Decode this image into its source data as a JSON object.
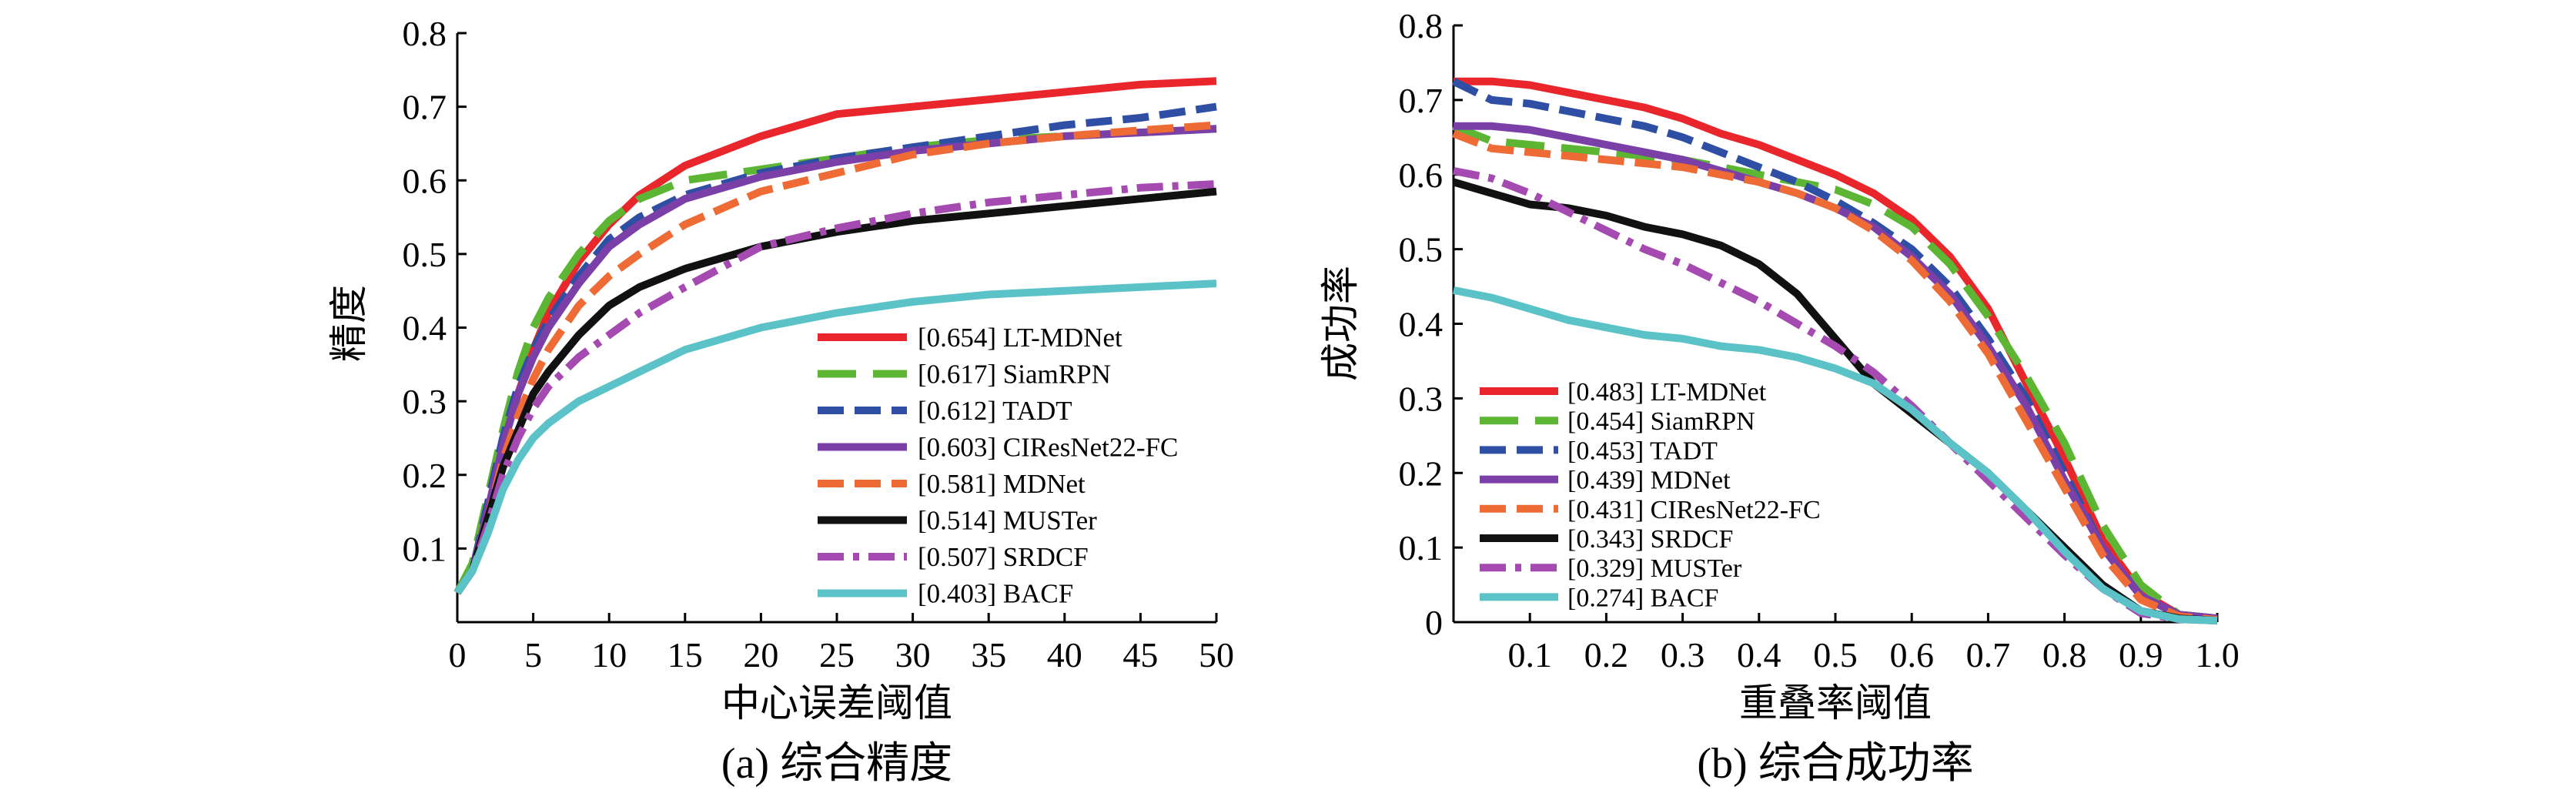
{
  "chart_data": [
    {
      "id": "a",
      "type": "line",
      "caption": "(a) 综合精度",
      "xlabel": "中心误差阈值",
      "ylabel": "精度",
      "xlim": [
        0,
        50
      ],
      "ylim": [
        0,
        0.8
      ],
      "xticks": [
        "0",
        "5",
        "10",
        "15",
        "20",
        "25",
        "30",
        "35",
        "40",
        "45",
        "50"
      ],
      "yticks": [
        "0.1",
        "0.2",
        "0.3",
        "0.4",
        "0.5",
        "0.6",
        "0.7",
        "0.8"
      ],
      "legend_position": "bottom-right",
      "series": [
        {
          "name": "[0.654] LT-MDNet",
          "color": "#e8262b",
          "dash": "solid",
          "x": [
            0,
            1,
            2,
            3,
            4,
            5,
            6,
            8,
            10,
            12,
            15,
            20,
            25,
            30,
            35,
            40,
            45,
            50
          ],
          "y": [
            0.04,
            0.07,
            0.15,
            0.24,
            0.31,
            0.37,
            0.42,
            0.49,
            0.54,
            0.58,
            0.62,
            0.66,
            0.69,
            0.7,
            0.71,
            0.72,
            0.73,
            0.735
          ]
        },
        {
          "name": "[0.617] SiamRPN",
          "color": "#5cb634",
          "dash": "longdash",
          "x": [
            0,
            1,
            2,
            3,
            4,
            5,
            6,
            8,
            10,
            12,
            15,
            20,
            25,
            30,
            35,
            40,
            45,
            50
          ],
          "y": [
            0.04,
            0.08,
            0.17,
            0.26,
            0.34,
            0.4,
            0.44,
            0.5,
            0.545,
            0.575,
            0.6,
            0.615,
            0.63,
            0.645,
            0.655,
            0.66,
            0.665,
            0.67
          ]
        },
        {
          "name": "[0.612] TADT",
          "color": "#2e4fa3",
          "dash": "dashed",
          "x": [
            0,
            1,
            2,
            3,
            4,
            5,
            6,
            8,
            10,
            12,
            15,
            20,
            25,
            30,
            35,
            40,
            45,
            50
          ],
          "y": [
            0.04,
            0.07,
            0.16,
            0.25,
            0.32,
            0.37,
            0.41,
            0.47,
            0.52,
            0.55,
            0.58,
            0.61,
            0.63,
            0.645,
            0.66,
            0.675,
            0.685,
            0.7
          ]
        },
        {
          "name": "[0.603] CIResNet22-FC",
          "color": "#7b3fa8",
          "dash": "solid",
          "x": [
            0,
            1,
            2,
            3,
            4,
            5,
            6,
            8,
            10,
            12,
            15,
            20,
            25,
            30,
            35,
            40,
            45,
            50
          ],
          "y": [
            0.04,
            0.07,
            0.15,
            0.24,
            0.31,
            0.36,
            0.4,
            0.46,
            0.51,
            0.54,
            0.575,
            0.605,
            0.625,
            0.64,
            0.65,
            0.66,
            0.665,
            0.67
          ]
        },
        {
          "name": "[0.581] MDNet",
          "color": "#ee6b35",
          "dash": "dashed",
          "x": [
            0,
            1,
            2,
            3,
            4,
            5,
            6,
            8,
            10,
            12,
            15,
            20,
            25,
            30,
            35,
            40,
            45,
            50
          ],
          "y": [
            0.04,
            0.07,
            0.14,
            0.22,
            0.28,
            0.33,
            0.37,
            0.43,
            0.47,
            0.5,
            0.54,
            0.585,
            0.61,
            0.635,
            0.65,
            0.66,
            0.668,
            0.675
          ]
        },
        {
          "name": "[0.514] MUSTer",
          "color": "#111111",
          "dash": "solid",
          "x": [
            0,
            1,
            2,
            3,
            4,
            5,
            6,
            8,
            10,
            12,
            15,
            20,
            25,
            30,
            35,
            40,
            45,
            50
          ],
          "y": [
            0.04,
            0.07,
            0.14,
            0.21,
            0.26,
            0.31,
            0.34,
            0.39,
            0.43,
            0.455,
            0.48,
            0.51,
            0.53,
            0.545,
            0.555,
            0.565,
            0.575,
            0.585
          ]
        },
        {
          "name": "[0.507] SRDCF",
          "color": "#a44ab0",
          "dash": "dashdot",
          "x": [
            0,
            1,
            2,
            3,
            4,
            5,
            6,
            8,
            10,
            12,
            15,
            20,
            25,
            30,
            35,
            40,
            45,
            50
          ],
          "y": [
            0.04,
            0.07,
            0.13,
            0.2,
            0.25,
            0.29,
            0.32,
            0.36,
            0.39,
            0.42,
            0.455,
            0.51,
            0.535,
            0.555,
            0.57,
            0.58,
            0.59,
            0.595
          ]
        },
        {
          "name": "[0.403] BACF",
          "color": "#5bc3c7",
          "dash": "solid",
          "x": [
            0,
            1,
            2,
            3,
            4,
            5,
            6,
            8,
            10,
            12,
            15,
            20,
            25,
            30,
            35,
            40,
            45,
            50
          ],
          "y": [
            0.04,
            0.07,
            0.12,
            0.18,
            0.22,
            0.25,
            0.27,
            0.3,
            0.32,
            0.34,
            0.37,
            0.4,
            0.42,
            0.435,
            0.445,
            0.45,
            0.455,
            0.46
          ]
        }
      ]
    },
    {
      "id": "b",
      "type": "line",
      "caption": "(b) 综合成功率",
      "xlabel": "重叠率阈值",
      "ylabel": "成功率",
      "xlim": [
        0,
        1.0
      ],
      "ylim": [
        0,
        0.8
      ],
      "xticks": [
        "0.1",
        "0.2",
        "0.3",
        "0.4",
        "0.5",
        "0.6",
        "0.7",
        "0.8",
        "0.9",
        "1.0"
      ],
      "yticks": [
        "0",
        "0.1",
        "0.2",
        "0.3",
        "0.4",
        "0.5",
        "0.6",
        "0.7",
        "0.8"
      ],
      "legend_position": "bottom-left",
      "series": [
        {
          "name": "[0.483] LT-MDNet",
          "color": "#e8262b",
          "dash": "solid",
          "x": [
            0,
            0.05,
            0.1,
            0.15,
            0.2,
            0.25,
            0.3,
            0.35,
            0.4,
            0.45,
            0.5,
            0.55,
            0.6,
            0.65,
            0.7,
            0.75,
            0.8,
            0.85,
            0.9,
            0.95,
            1.0
          ],
          "y": [
            0.725,
            0.725,
            0.72,
            0.71,
            0.7,
            0.69,
            0.675,
            0.655,
            0.64,
            0.62,
            0.6,
            0.575,
            0.54,
            0.49,
            0.42,
            0.32,
            0.22,
            0.11,
            0.04,
            0.01,
            0.005
          ]
        },
        {
          "name": "[0.454] SiamRPN",
          "color": "#5cb634",
          "dash": "longdash",
          "x": [
            0,
            0.05,
            0.1,
            0.15,
            0.2,
            0.25,
            0.3,
            0.35,
            0.4,
            0.45,
            0.5,
            0.55,
            0.6,
            0.65,
            0.7,
            0.75,
            0.8,
            0.85,
            0.9,
            0.95,
            1.0
          ],
          "y": [
            0.665,
            0.645,
            0.64,
            0.635,
            0.63,
            0.625,
            0.62,
            0.61,
            0.6,
            0.59,
            0.58,
            0.56,
            0.53,
            0.48,
            0.41,
            0.33,
            0.24,
            0.13,
            0.05,
            0.01,
            0.005
          ]
        },
        {
          "name": "[0.453] TADT",
          "color": "#2e4fa3",
          "dash": "dashed",
          "x": [
            0,
            0.05,
            0.1,
            0.15,
            0.2,
            0.25,
            0.3,
            0.35,
            0.4,
            0.45,
            0.5,
            0.55,
            0.6,
            0.65,
            0.7,
            0.75,
            0.8,
            0.85,
            0.9,
            0.95,
            1.0
          ],
          "y": [
            0.725,
            0.7,
            0.695,
            0.685,
            0.675,
            0.665,
            0.65,
            0.63,
            0.61,
            0.59,
            0.565,
            0.535,
            0.5,
            0.45,
            0.38,
            0.3,
            0.2,
            0.1,
            0.035,
            0.01,
            0.005
          ]
        },
        {
          "name": "[0.439] MDNet",
          "color": "#7b3fa8",
          "dash": "solid",
          "x": [
            0,
            0.05,
            0.1,
            0.15,
            0.2,
            0.25,
            0.3,
            0.35,
            0.4,
            0.45,
            0.5,
            0.55,
            0.6,
            0.65,
            0.7,
            0.75,
            0.8,
            0.85,
            0.9,
            0.95,
            1.0
          ],
          "y": [
            0.665,
            0.665,
            0.66,
            0.65,
            0.64,
            0.63,
            0.62,
            0.605,
            0.59,
            0.575,
            0.555,
            0.53,
            0.49,
            0.44,
            0.37,
            0.29,
            0.19,
            0.1,
            0.035,
            0.01,
            0.005
          ]
        },
        {
          "name": "[0.431] CIResNet22-FC",
          "color": "#ee6b35",
          "dash": "dashed",
          "x": [
            0,
            0.05,
            0.1,
            0.15,
            0.2,
            0.25,
            0.3,
            0.35,
            0.4,
            0.45,
            0.5,
            0.55,
            0.6,
            0.65,
            0.7,
            0.75,
            0.8,
            0.85,
            0.9,
            0.95,
            1.0
          ],
          "y": [
            0.655,
            0.635,
            0.63,
            0.625,
            0.62,
            0.615,
            0.61,
            0.6,
            0.59,
            0.575,
            0.555,
            0.525,
            0.485,
            0.43,
            0.36,
            0.27,
            0.18,
            0.09,
            0.03,
            0.008,
            0.003
          ]
        },
        {
          "name": "[0.343] SRDCF",
          "color": "#111111",
          "dash": "solid",
          "x": [
            0,
            0.05,
            0.1,
            0.15,
            0.2,
            0.25,
            0.3,
            0.35,
            0.4,
            0.45,
            0.5,
            0.55,
            0.6,
            0.65,
            0.7,
            0.75,
            0.8,
            0.85,
            0.9,
            0.95,
            1.0
          ],
          "y": [
            0.59,
            0.575,
            0.56,
            0.555,
            0.545,
            0.53,
            0.52,
            0.505,
            0.48,
            0.44,
            0.38,
            0.32,
            0.28,
            0.24,
            0.2,
            0.15,
            0.1,
            0.05,
            0.015,
            0.005,
            0.002
          ]
        },
        {
          "name": "[0.329] MUSTer",
          "color": "#a44ab0",
          "dash": "dashdot",
          "x": [
            0,
            0.05,
            0.1,
            0.15,
            0.2,
            0.25,
            0.3,
            0.35,
            0.4,
            0.45,
            0.5,
            0.55,
            0.6,
            0.65,
            0.7,
            0.75,
            0.8,
            0.85,
            0.9,
            0.95,
            1.0
          ],
          "y": [
            0.605,
            0.595,
            0.575,
            0.55,
            0.525,
            0.5,
            0.48,
            0.455,
            0.43,
            0.4,
            0.37,
            0.335,
            0.29,
            0.24,
            0.19,
            0.14,
            0.09,
            0.045,
            0.012,
            0.004,
            0.002
          ]
        },
        {
          "name": "[0.274] BACF",
          "color": "#5bc3c7",
          "dash": "solid",
          "x": [
            0,
            0.05,
            0.1,
            0.15,
            0.2,
            0.25,
            0.3,
            0.35,
            0.4,
            0.45,
            0.5,
            0.55,
            0.6,
            0.65,
            0.7,
            0.75,
            0.8,
            0.85,
            0.9,
            0.95,
            1.0
          ],
          "y": [
            0.445,
            0.435,
            0.42,
            0.405,
            0.395,
            0.385,
            0.38,
            0.37,
            0.365,
            0.355,
            0.34,
            0.32,
            0.285,
            0.24,
            0.2,
            0.15,
            0.095,
            0.045,
            0.015,
            0.004,
            0.002
          ]
        }
      ]
    }
  ]
}
